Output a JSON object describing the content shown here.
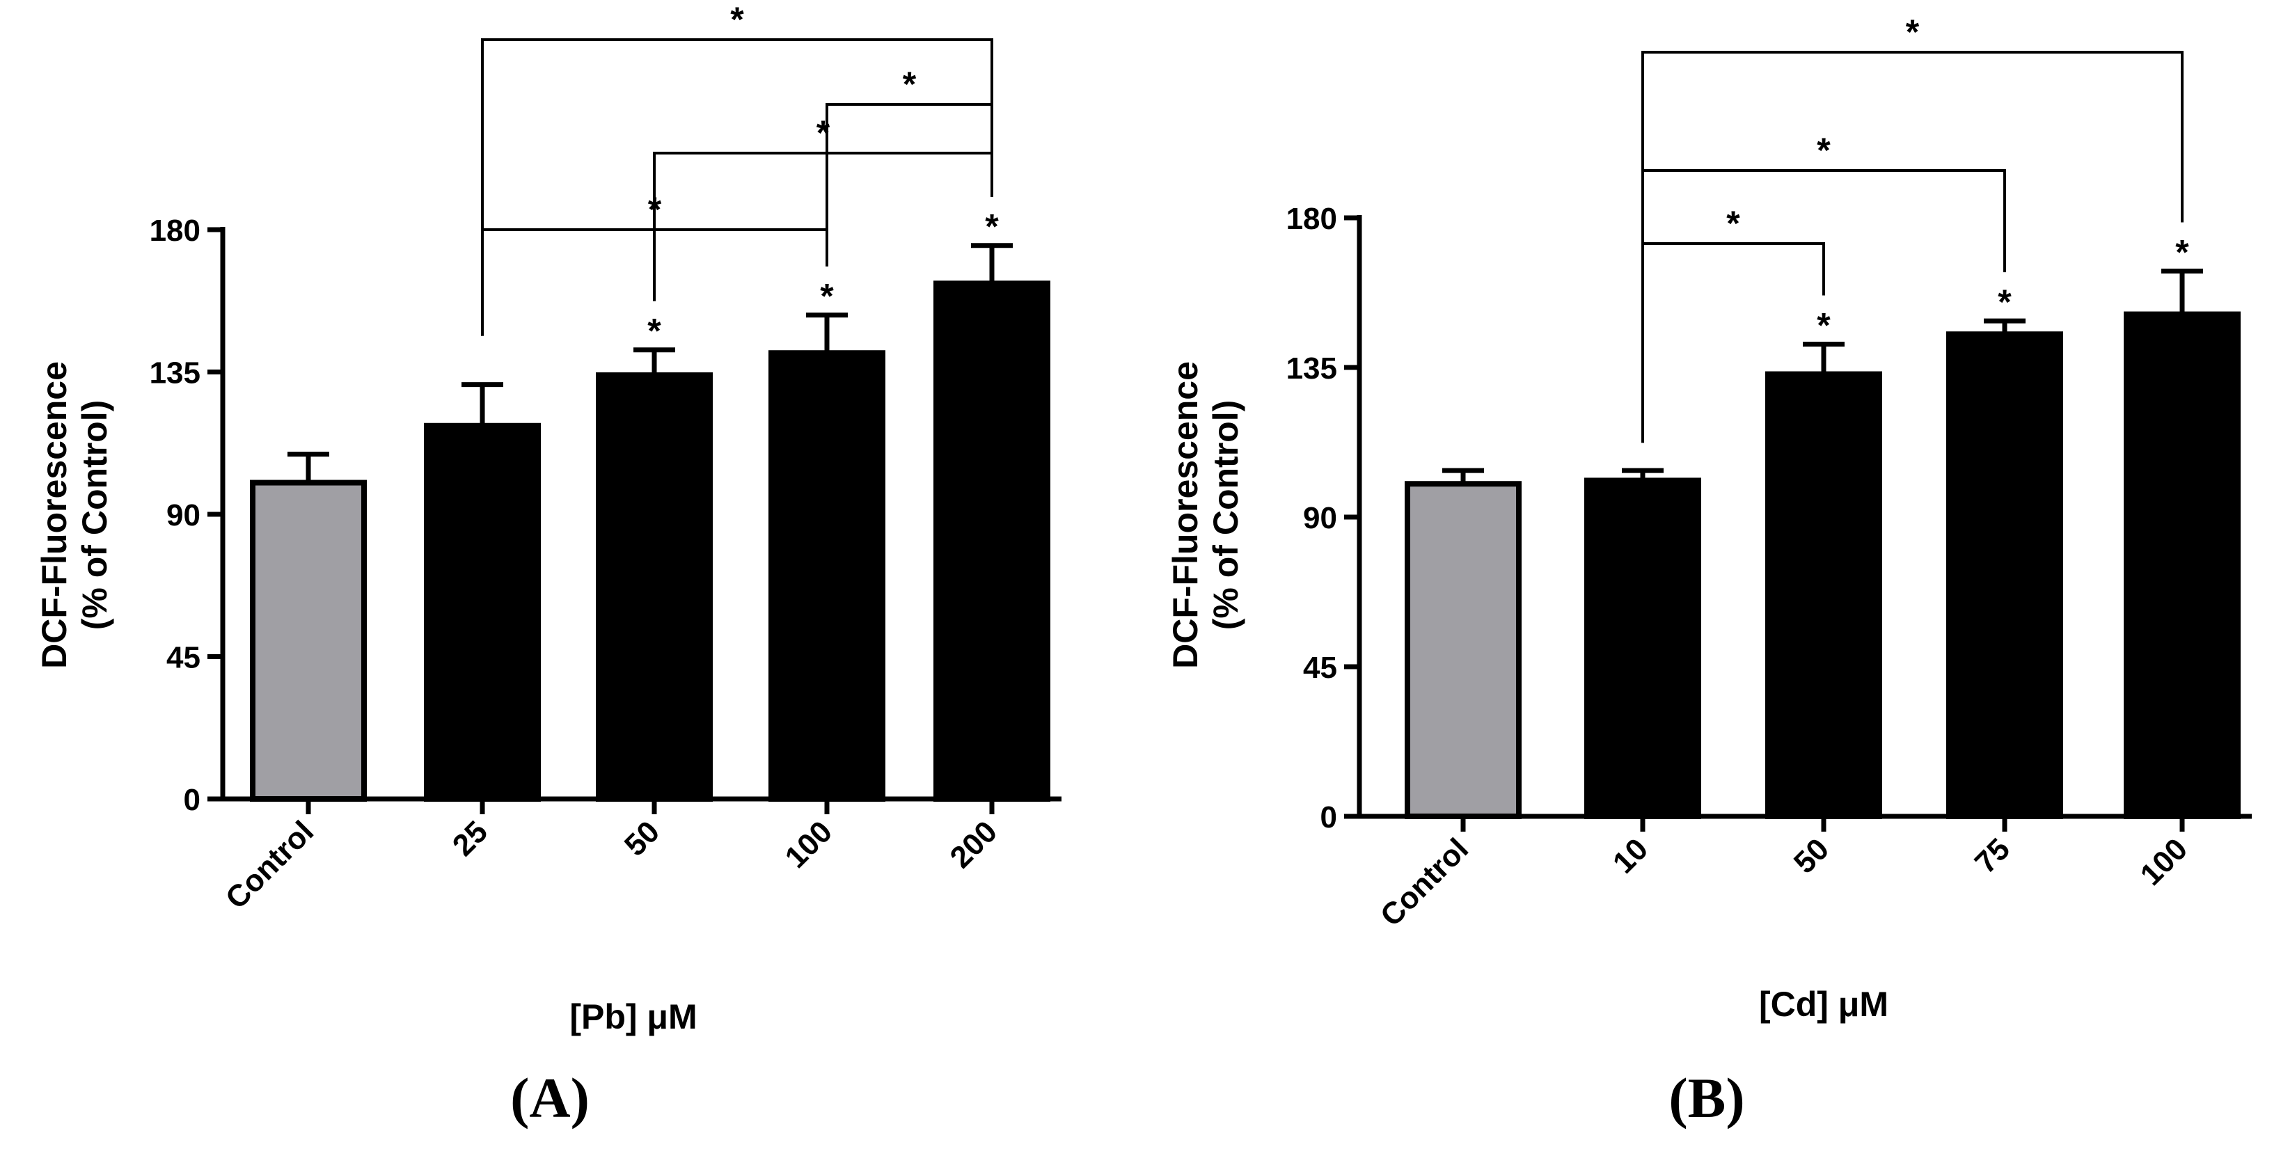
{
  "chart_data": [
    {
      "type": "bar",
      "panel_label": "(A)",
      "categories": [
        "Control",
        "25",
        "50",
        "100",
        "200"
      ],
      "values": [
        100,
        118,
        134,
        141,
        163
      ],
      "errors": [
        9,
        13,
        8,
        12,
        12
      ],
      "bar_colors": [
        "#a09fa4",
        "#000000",
        "#000000",
        "#000000",
        "#000000"
      ],
      "significance_marks": [
        "",
        "",
        "*",
        "*",
        "*"
      ],
      "brackets": [
        {
          "from": 1,
          "to": 4,
          "label": "*"
        },
        {
          "from": 3,
          "to": 4,
          "label": "*"
        },
        {
          "from": 2,
          "to": 4,
          "label": "*"
        },
        {
          "from": 1,
          "to": 3,
          "label": "*"
        }
      ],
      "ylabel_line1": "DCF-Fluorescence",
      "ylabel_line2": "(% of Control)",
      "xlabel": "[Pb] μM",
      "ylim": [
        0,
        180
      ],
      "yticks": [
        0,
        45,
        90,
        135,
        180
      ]
    },
    {
      "type": "bar",
      "panel_label": "(B)",
      "categories": [
        "Control",
        "10",
        "50",
        "75",
        "100"
      ],
      "values": [
        100,
        101,
        133,
        145,
        151
      ],
      "errors": [
        4,
        3,
        9,
        4,
        13
      ],
      "bar_colors": [
        "#a09fa4",
        "#000000",
        "#000000",
        "#000000",
        "#000000"
      ],
      "significance_marks": [
        "",
        "",
        "*",
        "*",
        "*"
      ],
      "brackets": [
        {
          "from": 1,
          "to": 4,
          "label": "*"
        },
        {
          "from": 1,
          "to": 3,
          "label": "*"
        },
        {
          "from": 1,
          "to": 2,
          "label": "*"
        }
      ],
      "ylabel_line1": "DCF-Fluorescence",
      "ylabel_line2": "(% of Control)",
      "xlabel": "[Cd] μM",
      "ylim": [
        0,
        180
      ],
      "yticks": [
        0,
        45,
        90,
        135,
        180
      ]
    }
  ]
}
